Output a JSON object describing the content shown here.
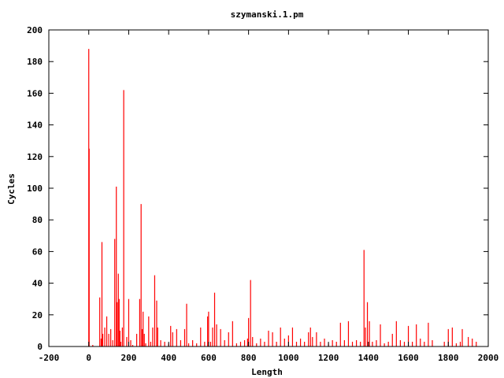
{
  "chart_data": {
    "type": "bar",
    "title": "szymanski.1.pm",
    "xlabel": "Length",
    "ylabel": "Cycles",
    "xlim": [
      -200,
      2000
    ],
    "ylim": [
      0,
      200
    ],
    "xticks": [
      -200,
      0,
      200,
      400,
      600,
      800,
      1000,
      1200,
      1400,
      1600,
      1800,
      2000
    ],
    "yticks": [
      0,
      20,
      40,
      60,
      80,
      100,
      120,
      140,
      160,
      180,
      200
    ],
    "grid": false,
    "legend": "none",
    "bar_color": "#ff0000",
    "x": [
      0,
      2,
      20,
      55,
      62,
      66,
      70,
      80,
      90,
      100,
      110,
      120,
      130,
      138,
      142,
      148,
      152,
      156,
      160,
      168,
      175,
      190,
      200,
      210,
      220,
      240,
      255,
      262,
      268,
      272,
      278,
      285,
      300,
      310,
      320,
      330,
      340,
      345,
      360,
      380,
      400,
      410,
      420,
      440,
      460,
      480,
      490,
      500,
      520,
      540,
      560,
      580,
      595,
      600,
      610,
      620,
      630,
      640,
      660,
      680,
      700,
      720,
      740,
      760,
      780,
      795,
      800,
      810,
      820,
      840,
      860,
      880,
      900,
      920,
      940,
      960,
      980,
      1000,
      1020,
      1040,
      1060,
      1080,
      1100,
      1110,
      1120,
      1140,
      1160,
      1180,
      1200,
      1220,
      1240,
      1260,
      1280,
      1300,
      1320,
      1340,
      1360,
      1378,
      1385,
      1395,
      1405,
      1420,
      1440,
      1460,
      1480,
      1500,
      1520,
      1540,
      1560,
      1580,
      1600,
      1620,
      1640,
      1660,
      1680,
      1700,
      1720,
      1780,
      1800,
      1820,
      1840,
      1860,
      1870,
      1900,
      1920,
      1940
    ],
    "values": [
      188,
      125,
      1,
      31,
      5,
      66,
      8,
      12,
      19,
      8,
      11,
      4,
      68,
      101,
      28,
      46,
      30,
      10,
      3,
      12,
      162,
      6,
      30,
      4,
      1,
      8,
      30,
      90,
      11,
      22,
      8,
      2,
      19,
      3,
      12,
      45,
      29,
      12,
      4,
      3,
      2,
      13,
      9,
      11,
      4,
      11,
      27,
      2,
      4,
      2,
      12,
      3,
      19,
      22,
      3,
      12,
      34,
      14,
      11,
      4,
      9,
      16,
      2,
      3,
      4,
      5,
      18,
      42,
      6,
      2,
      5,
      3,
      10,
      9,
      3,
      12,
      5,
      7,
      12,
      3,
      5,
      3,
      9,
      12,
      6,
      9,
      3,
      5,
      2,
      4,
      3,
      15,
      4,
      16,
      3,
      4,
      3,
      61,
      12,
      28,
      16,
      3,
      4,
      14,
      2,
      3,
      8,
      16,
      4,
      3,
      13,
      3,
      14,
      5,
      3,
      15,
      4,
      3,
      11,
      12,
      2,
      3,
      11,
      6,
      5,
      3
    ]
  }
}
